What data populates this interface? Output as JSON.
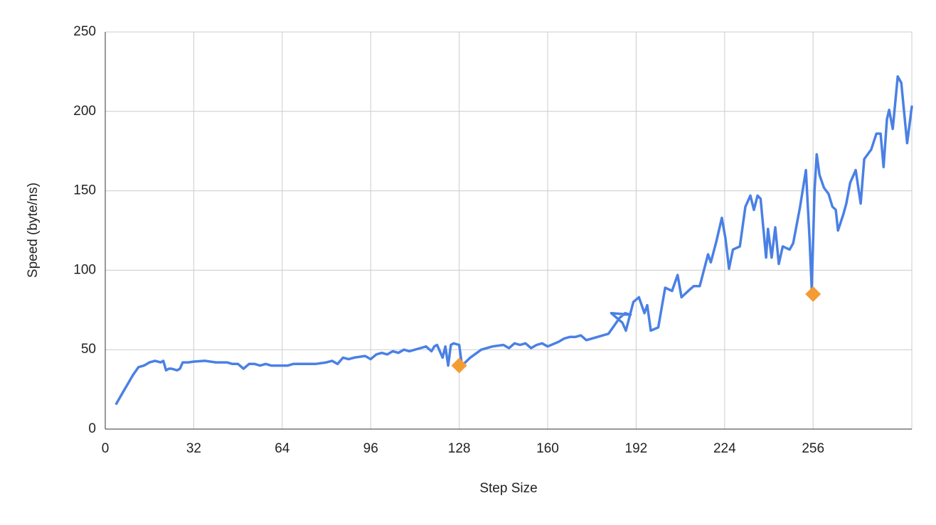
{
  "chart_data": {
    "type": "line",
    "x_label": "Step Size",
    "y_label": "Speed (byte/ns)",
    "xlim": [
      0,
      291.7
    ],
    "xticks": [
      0,
      32,
      64,
      96,
      128,
      160,
      192,
      224,
      256
    ],
    "ylim": [
      0,
      250
    ],
    "yticks": [
      0,
      50,
      100,
      150,
      200,
      250
    ],
    "grid": true,
    "series": [
      {
        "color": "#4a80e6",
        "marker": "none",
        "x": [
          4,
          6,
          8,
          10,
          12,
          14,
          16,
          18,
          20,
          21,
          22,
          23,
          24,
          26,
          27,
          28,
          30,
          32,
          36,
          40,
          44,
          46,
          48,
          50,
          52,
          54,
          56,
          58,
          60,
          62,
          64,
          66,
          68,
          70,
          72,
          76,
          80,
          82,
          84,
          86,
          88,
          90,
          94,
          96,
          98,
          100,
          102,
          104,
          106,
          108,
          110,
          112,
          114,
          116,
          118,
          119,
          120,
          121,
          122,
          123,
          124,
          125,
          126,
          128,
          129,
          132,
          136,
          140,
          144,
          146,
          148,
          150,
          152,
          154,
          156,
          158,
          160,
          164,
          166,
          168,
          170,
          172,
          174,
          178,
          182,
          184,
          186,
          188,
          190,
          183,
          187,
          188.3,
          191,
          193,
          195,
          196,
          197.3,
          200,
          202.5,
          205,
          207,
          208.4,
          211.5,
          212.8,
          215,
          218,
          219,
          221,
          223,
          224.3,
          225.6,
          227,
          229.5,
          231.5,
          233.3,
          234.6,
          235.9,
          237,
          239,
          239.7,
          241,
          242.3,
          243.6,
          245,
          247.5,
          248.8,
          251.3,
          253.4,
          254.7,
          255.5,
          256.5,
          257.3,
          258.3,
          259.9,
          261.6,
          263,
          264.2,
          265,
          266.9,
          268,
          269.4,
          271.4,
          273.2,
          274.5,
          277,
          278.9,
          280.4,
          281.5,
          282.7,
          283.5,
          284.8,
          286.6,
          287.9,
          290,
          291.7
        ],
        "values": [
          16,
          22,
          28,
          34,
          39,
          40,
          42,
          43,
          42,
          43,
          37,
          38,
          38,
          37,
          38,
          42,
          42,
          42.5,
          43,
          42,
          42,
          41,
          41,
          38,
          41,
          41,
          40,
          41,
          40,
          40,
          40,
          40,
          41,
          41,
          41,
          41,
          42,
          43,
          41,
          45,
          44,
          45,
          46,
          44,
          47,
          48,
          47,
          49,
          48,
          50,
          49,
          50,
          51,
          52,
          49,
          52,
          53,
          49,
          45,
          52,
          40,
          53,
          54,
          53,
          40,
          45,
          50,
          52,
          53,
          51,
          54,
          53,
          54,
          51,
          53,
          54,
          52,
          55,
          57,
          58,
          58,
          59,
          56,
          58,
          60,
          65,
          70,
          73,
          72,
          73,
          67,
          62,
          80,
          83,
          73,
          78,
          62,
          64,
          89,
          87,
          97,
          83,
          88,
          90,
          90,
          110,
          105,
          118,
          133,
          120,
          101,
          113,
          115,
          140,
          147,
          138,
          147,
          145,
          108,
          126,
          108,
          127,
          104,
          115,
          113,
          117,
          140,
          163,
          120,
          88,
          150,
          173,
          160,
          152,
          148,
          140,
          138,
          125,
          135,
          142,
          155,
          163,
          142,
          170,
          176,
          186,
          186,
          165,
          195,
          201,
          189,
          222,
          218,
          180,
          203
        ]
      },
      {
        "color": "#f39c33",
        "marker": "diamond",
        "x": [
          128,
          256
        ],
        "values": [
          40,
          85
        ]
      }
    ]
  }
}
